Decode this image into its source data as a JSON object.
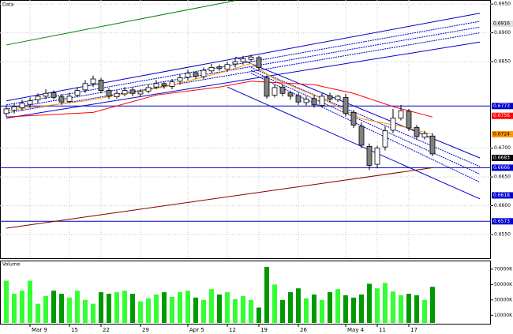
{
  "chart_data": {
    "type": "candlestick",
    "title": "Data",
    "categories": [
      null,
      null,
      null,
      "Mar 9",
      null,
      null,
      null,
      null,
      "15",
      null,
      null,
      null,
      "22",
      null,
      null,
      null,
      null,
      "29",
      null,
      null,
      null,
      null,
      null,
      "Apr 5",
      null,
      null,
      null,
      null,
      "12",
      null,
      null,
      null,
      "19",
      null,
      null,
      null,
      null,
      "26",
      null,
      null,
      null,
      null,
      null,
      "May 4",
      null,
      null,
      null,
      "11",
      null,
      null,
      null,
      "17",
      null,
      null,
      null
    ],
    "open": [
      0.676,
      0.6766,
      0.677,
      0.6776,
      0.6784,
      0.679,
      0.6796,
      0.6789,
      0.6781,
      0.6792,
      0.6801,
      0.6812,
      0.6818,
      0.68,
      0.6789,
      0.6794,
      0.6801,
      0.6794,
      0.6799,
      0.6806,
      0.6812,
      0.6807,
      0.6816,
      0.6823,
      0.6831,
      0.6824,
      0.6834,
      0.6841,
      0.6837,
      0.6846,
      0.685,
      0.6854,
      0.6857,
      0.6822,
      0.6792,
      0.6806,
      0.6796,
      0.6791,
      0.6779,
      0.6786,
      0.6774,
      0.6791,
      0.6784,
      0.6788,
      0.6762,
      0.6738,
      0.6703,
      0.6672,
      0.6702,
      0.6731,
      0.6752,
      0.6764,
      0.6736,
      0.6719,
      0.6721
    ],
    "high": [
      0.6774,
      0.6778,
      0.6784,
      0.6788,
      0.6795,
      0.6802,
      0.68,
      0.6794,
      0.6796,
      0.6806,
      0.6818,
      0.6826,
      0.6822,
      0.6804,
      0.68,
      0.6806,
      0.6806,
      0.6802,
      0.681,
      0.6818,
      0.6815,
      0.682,
      0.6828,
      0.6836,
      0.6834,
      0.684,
      0.6846,
      0.6845,
      0.685,
      0.6856,
      0.686,
      0.6862,
      0.686,
      0.6826,
      0.681,
      0.681,
      0.68,
      0.6796,
      0.679,
      0.6792,
      0.6795,
      0.6796,
      0.6792,
      0.6794,
      0.6766,
      0.6745,
      0.6708,
      0.6704,
      0.6738,
      0.6768,
      0.6775,
      0.6768,
      0.674,
      0.673,
      0.6726
    ],
    "low": [
      0.6754,
      0.676,
      0.6765,
      0.677,
      0.6778,
      0.6785,
      0.6784,
      0.6775,
      0.6778,
      0.6788,
      0.6796,
      0.6806,
      0.6795,
      0.6785,
      0.6786,
      0.679,
      0.679,
      0.679,
      0.6795,
      0.6802,
      0.6803,
      0.6802,
      0.681,
      0.6818,
      0.682,
      0.682,
      0.683,
      0.6834,
      0.6832,
      0.684,
      0.6845,
      0.685,
      0.6835,
      0.6786,
      0.6788,
      0.679,
      0.6784,
      0.6775,
      0.6774,
      0.677,
      0.677,
      0.678,
      0.678,
      0.6755,
      0.6735,
      0.67,
      0.6662,
      0.6665,
      0.6696,
      0.6726,
      0.6748,
      0.673,
      0.6715,
      0.6715,
      0.6686
    ],
    "close": [
      0.6768,
      0.6772,
      0.6778,
      0.6782,
      0.679,
      0.6795,
      0.6788,
      0.678,
      0.679,
      0.68,
      0.6812,
      0.682,
      0.68,
      0.679,
      0.6795,
      0.68,
      0.6795,
      0.6798,
      0.6805,
      0.6812,
      0.6808,
      0.6815,
      0.6822,
      0.683,
      0.6825,
      0.6835,
      0.684,
      0.6838,
      0.6845,
      0.685,
      0.6855,
      0.6858,
      0.684,
      0.679,
      0.6805,
      0.6795,
      0.679,
      0.678,
      0.6785,
      0.6775,
      0.679,
      0.6785,
      0.679,
      0.676,
      0.674,
      0.6705,
      0.667,
      0.67,
      0.673,
      0.6752,
      0.6765,
      0.6735,
      0.672,
      0.6725,
      0.669
    ],
    "up_color": "#ffffff",
    "down_color": "#808080",
    "ylim": [
      0.6509,
      0.6957
    ],
    "yticks": [
      {
        "value": 0.695,
        "label": "0.6950"
      },
      {
        "value": 0.69,
        "label": "0.6900"
      },
      {
        "value": 0.685,
        "label": "0.6850"
      },
      {
        "value": 0.67,
        "label": "0.6700"
      },
      {
        "value": 0.665,
        "label": "0.6650"
      },
      {
        "value": 0.66,
        "label": "0.6600"
      },
      {
        "value": 0.655,
        "label": "0.6550"
      }
    ],
    "lines": [
      {
        "color": "#008000",
        "style": "solid",
        "x": [
          0,
          29
        ],
        "y": [
          0.6879,
          0.6956
        ]
      },
      {
        "color": "#0000cc",
        "style": "solid",
        "x": [
          0,
          60
        ],
        "y": [
          0.6782,
          0.6934
        ]
      },
      {
        "color": "#0000cc",
        "style": "dotted",
        "x": [
          0,
          60
        ],
        "y": [
          0.6775,
          0.692
        ]
      },
      {
        "color": "#0000cc",
        "style": "dotted",
        "x": [
          0,
          60
        ],
        "y": [
          0.6768,
          0.691
        ]
      },
      {
        "color": "#0000cc",
        "style": "dotted",
        "x": [
          0,
          60
        ],
        "y": [
          0.6761,
          0.69
        ]
      },
      {
        "color": "#0000cc",
        "style": "solid",
        "x": [
          0,
          60
        ],
        "y": [
          0.6752,
          0.6884
        ]
      },
      {
        "color": "#0000cc",
        "style": "solid",
        "x": [
          29,
          60
        ],
        "y": [
          0.6858,
          0.6683
        ]
      },
      {
        "color": "#0000cc",
        "style": "dotted",
        "x": [
          31,
          60
        ],
        "y": [
          0.684,
          0.6668
        ]
      },
      {
        "color": "#0000cc",
        "style": "dotted",
        "x": [
          31,
          60
        ],
        "y": [
          0.6835,
          0.6655
        ]
      },
      {
        "color": "#0000cc",
        "style": "dotted",
        "x": [
          31,
          60
        ],
        "y": [
          0.683,
          0.6641
        ]
      },
      {
        "color": "#0000cc",
        "style": "solid",
        "x": [
          28,
          60
        ],
        "y": [
          0.6806,
          0.6612
        ]
      },
      {
        "color": "#800000",
        "style": "solid",
        "x": [
          0,
          54
        ],
        "y": [
          0.6561,
          0.6666
        ]
      },
      {
        "color": "#ff0000",
        "style": "solid",
        "x": [
          0,
          11,
          19,
          27,
          31,
          39,
          44,
          49,
          54
        ],
        "y": [
          0.6754,
          0.6762,
          0.6792,
          0.6806,
          0.6816,
          0.681,
          0.6795,
          0.6772,
          0.6754
        ]
      },
      {
        "color": "#ff9900",
        "style": "solid",
        "x": [
          0,
          10,
          20,
          28,
          31,
          34,
          40,
          45,
          50,
          54
        ],
        "y": [
          0.6765,
          0.6782,
          0.6806,
          0.6834,
          0.6847,
          0.682,
          0.6786,
          0.6751,
          0.6738,
          0.6724
        ]
      }
    ],
    "price_labels": [
      {
        "value": 0.6916,
        "color": "#e0e0e0",
        "hline": false
      },
      {
        "value": 0.6773,
        "color": "#0000cc",
        "hline": true
      },
      {
        "value": 0.6756,
        "color": "#ff0000",
        "hline": false
      },
      {
        "value": 0.6724,
        "color": "#ff9900",
        "hline": false
      },
      {
        "value": 0.6683,
        "color": "#000000",
        "hline": false
      },
      {
        "value": 0.6666,
        "color": "#0000cc",
        "hline": true
      },
      {
        "value": 0.6618,
        "color": "#0000cc",
        "hline": false
      },
      {
        "value": 0.6573,
        "color": "#0000cc",
        "hline": true
      }
    ],
    "volume": {
      "title": "Volume",
      "values": [
        55000,
        38000,
        42000,
        55000,
        25000,
        35000,
        42000,
        38000,
        33000,
        42000,
        30000,
        25000,
        40000,
        38000,
        40000,
        42000,
        38000,
        28000,
        32000,
        37000,
        40000,
        34000,
        40000,
        42000,
        33000,
        30000,
        44000,
        37000,
        40000,
        31000,
        35000,
        30000,
        20000,
        73000,
        50000,
        30000,
        40000,
        45000,
        32000,
        37000,
        30000,
        40000,
        44000,
        36000,
        33000,
        37000,
        51000,
        45000,
        52000,
        41000,
        36000,
        38000,
        36000,
        30000,
        47000
      ],
      "up_color": "#33ff33",
      "down_color": "#009900",
      "ylim": [
        0,
        75000
      ],
      "yticks": [
        {
          "value": 70000,
          "label": "70000K"
        },
        {
          "value": 50000,
          "label": "50000K"
        },
        {
          "value": 30000,
          "label": "30000K"
        },
        {
          "value": 10000,
          "label": "10000K"
        }
      ]
    }
  }
}
